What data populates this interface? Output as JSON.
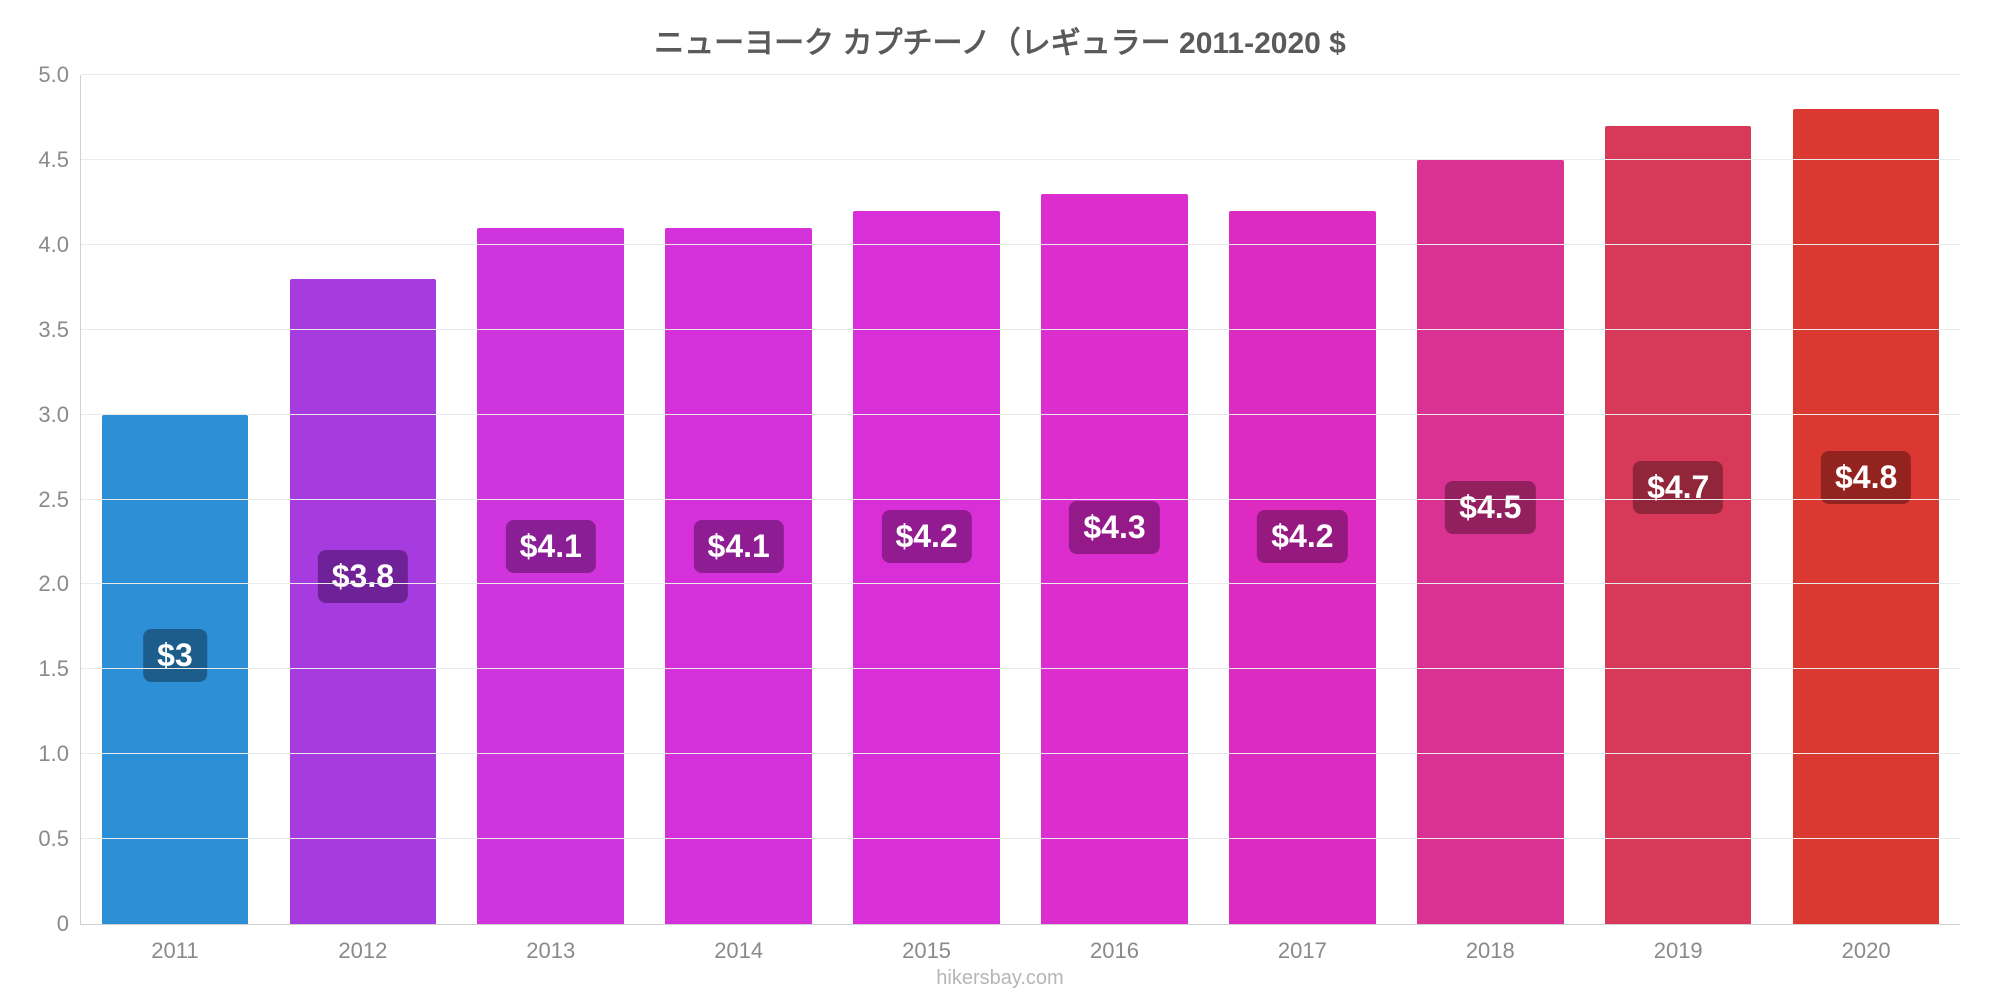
{
  "chart": {
    "type": "bar",
    "title": "ニューヨーク カプチーノ（レギュラー 2011-2020 $",
    "title_color": "#5a5a5a",
    "title_fontsize": 30,
    "background_color": "#ffffff",
    "grid_color": "#eaeaea",
    "axis_color": "#d0d0d0",
    "font_family": "Arial",
    "ylim": [
      0,
      5.0
    ],
    "yticks": [
      0,
      0.5,
      1.0,
      1.5,
      2.0,
      2.5,
      3.0,
      3.5,
      4.0,
      4.5,
      5.0
    ],
    "ytick_labels": [
      "0",
      "0.5",
      "1.0",
      "1.5",
      "2.0",
      "2.5",
      "3.0",
      "3.5",
      "4.0",
      "4.5",
      "5.0"
    ],
    "tick_label_color": "#8a8a8a",
    "tick_fontsize": 22,
    "bar_width_ratio": 0.78,
    "categories": [
      "2011",
      "2012",
      "2013",
      "2014",
      "2015",
      "2016",
      "2017",
      "2018",
      "2019",
      "2020"
    ],
    "values": [
      3.0,
      3.8,
      4.1,
      4.1,
      4.2,
      4.3,
      4.2,
      4.5,
      4.7,
      4.8
    ],
    "value_labels": [
      "$3",
      "$3.8",
      "$4.1",
      "$4.1",
      "$4.2",
      "$4.3",
      "$4.2",
      "$4.5",
      "$4.7",
      "$4.8"
    ],
    "bar_colors": [
      "#2d8fd6",
      "#a63be0",
      "#cf34dd",
      "#d531db",
      "#d92fd9",
      "#dc2dcf",
      "#dd2bc2",
      "#d93292",
      "#d83958",
      "#db3832"
    ],
    "badge_bg_colors": [
      "#1c5d8c",
      "#6f2297",
      "#8a1e95",
      "#8e1c93",
      "#921b91",
      "#951a89",
      "#961980",
      "#92205f",
      "#91253a",
      "#93231e"
    ],
    "value_label_fontsize": 32,
    "value_label_color": "#ffffff",
    "caption": "hikersbay.com",
    "caption_color": "#b6b6b6",
    "caption_fontsize": 20
  }
}
